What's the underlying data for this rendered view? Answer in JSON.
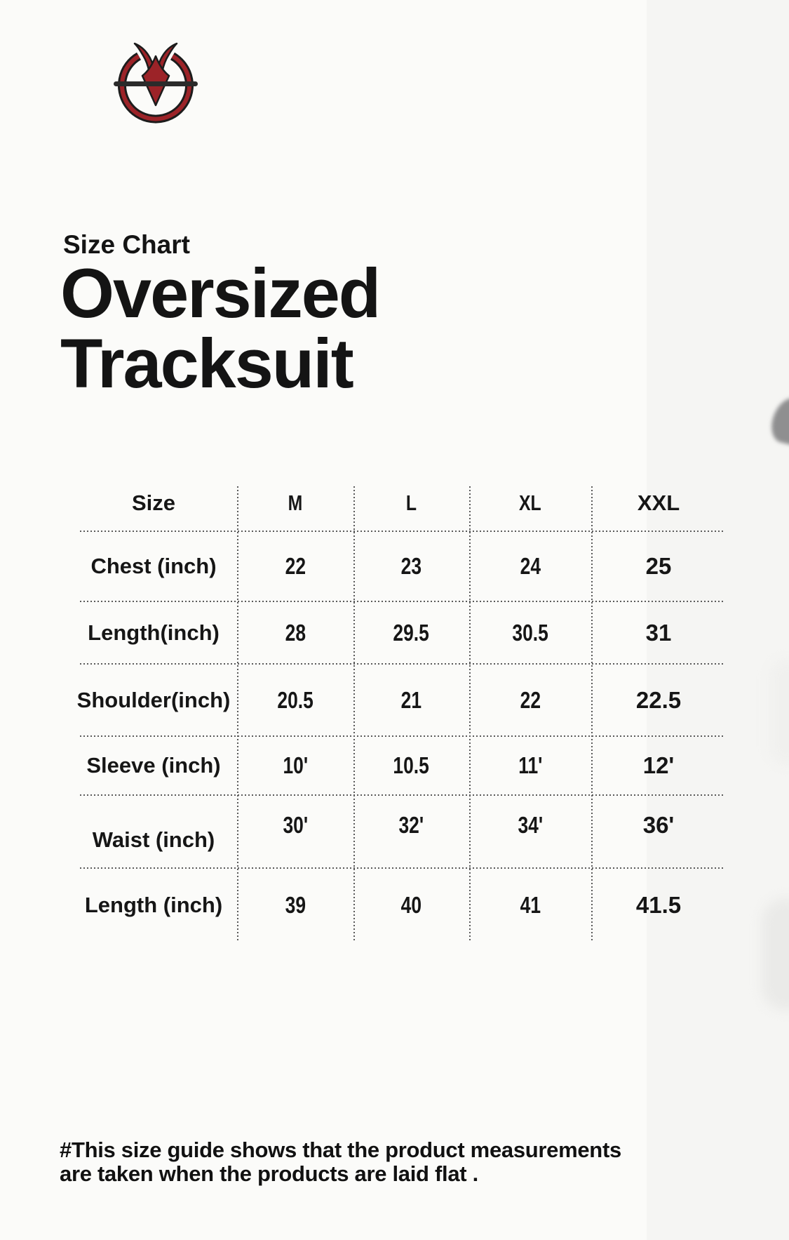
{
  "brand": {
    "logo_icon": "m-horns-circle-logo",
    "logo_red": "#9c2328",
    "logo_dark": "#1c1c1c",
    "logo_bar": "#2b2b2b"
  },
  "header": {
    "eyebrow": "Size Chart",
    "title_line1": "Oversized",
    "title_line2": "Tracksuit"
  },
  "chart_data": {
    "type": "table",
    "title": "Size Chart — Oversized Tracksuit",
    "columns": [
      "Size",
      "M",
      "L",
      "XL",
      "XXL"
    ],
    "rows": [
      {
        "label": "Chest (inch)",
        "values": [
          "22",
          "23",
          "24",
          "25"
        ]
      },
      {
        "label": "Length(inch)",
        "values": [
          "28",
          "29.5",
          "30.5",
          "31"
        ]
      },
      {
        "label": "Shoulder(inch)",
        "values": [
          "20.5",
          "21",
          "22",
          "22.5"
        ]
      },
      {
        "label": "Sleeve (inch)",
        "values": [
          "10'",
          "10.5",
          "11'",
          "12'"
        ]
      },
      {
        "label": "Waist (inch)",
        "values": [
          "30'",
          "32'",
          "34'",
          "36'"
        ]
      },
      {
        "label": "Length (inch)",
        "values": [
          "39",
          "40",
          "41",
          "41.5"
        ]
      }
    ],
    "grid": "dotted",
    "legend_position": "none"
  },
  "footer": {
    "line1": "#This size guide shows that the product measurements",
    "line2": "are taken when the products are laid flat ."
  }
}
